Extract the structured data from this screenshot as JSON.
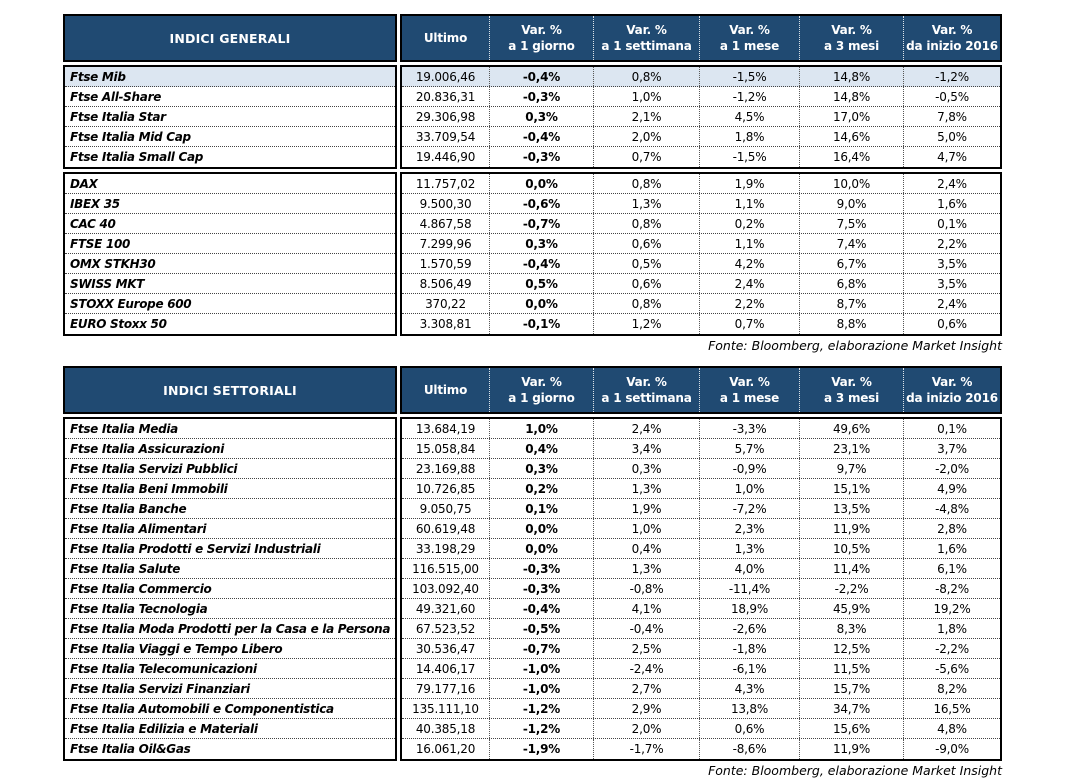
{
  "source_note": "Fonte: Bloomberg, elaborazione Market Insight",
  "colors": {
    "header_bg": "#204A72",
    "highlight_row": "#DCE6F1",
    "border": "#000000"
  },
  "columns": [
    {
      "l1": "Ultimo",
      "l2": ""
    },
    {
      "l1": "Var. %",
      "l2": "a 1 giorno"
    },
    {
      "l1": "Var. %",
      "l2": "a 1 settimana"
    },
    {
      "l1": "Var. %",
      "l2": "a 1 mese"
    },
    {
      "l1": "Var. %",
      "l2": "a 3 mesi"
    },
    {
      "l1": "Var. %",
      "l2": "da inizio 2016"
    }
  ],
  "tables": [
    {
      "title": "INDICI GENERALI",
      "groups": [
        {
          "rows": [
            {
              "name": "Ftse Mib",
              "highlight": true,
              "values": [
                "19.006,46",
                "-0,4%",
                "0,8%",
                "-1,5%",
                "14,8%",
                "-1,2%"
              ]
            },
            {
              "name": "Ftse All-Share",
              "values": [
                "20.836,31",
                "-0,3%",
                "1,0%",
                "-1,2%",
                "14,8%",
                "-0,5%"
              ]
            },
            {
              "name": "Ftse Italia Star",
              "values": [
                "29.306,98",
                "0,3%",
                "2,1%",
                "4,5%",
                "17,0%",
                "7,8%"
              ]
            },
            {
              "name": "Ftse Italia Mid Cap",
              "values": [
                "33.709,54",
                "-0,4%",
                "2,0%",
                "1,8%",
                "14,6%",
                "5,0%"
              ]
            },
            {
              "name": "Ftse Italia Small Cap",
              "values": [
                "19.446,90",
                "-0,3%",
                "0,7%",
                "-1,5%",
                "16,4%",
                "4,7%"
              ]
            }
          ]
        },
        {
          "rows": [
            {
              "name": "DAX",
              "values": [
                "11.757,02",
                "0,0%",
                "0,8%",
                "1,9%",
                "10,0%",
                "2,4%"
              ]
            },
            {
              "name": "IBEX 35",
              "values": [
                "9.500,30",
                "-0,6%",
                "1,3%",
                "1,1%",
                "9,0%",
                "1,6%"
              ]
            },
            {
              "name": "CAC 40",
              "values": [
                "4.867,58",
                "-0,7%",
                "0,8%",
                "0,2%",
                "7,5%",
                "0,1%"
              ]
            },
            {
              "name": "FTSE 100",
              "values": [
                "7.299,96",
                "0,3%",
                "0,6%",
                "1,1%",
                "7,4%",
                "2,2%"
              ]
            },
            {
              "name": "OMX STKH30",
              "values": [
                "1.570,59",
                "-0,4%",
                "0,5%",
                "4,2%",
                "6,7%",
                "3,5%"
              ]
            },
            {
              "name": "SWISS MKT",
              "values": [
                "8.506,49",
                "0,5%",
                "0,6%",
                "2,4%",
                "6,8%",
                "3,5%"
              ]
            },
            {
              "name": "STOXX Europe 600",
              "values": [
                "370,22",
                "0,0%",
                "0,8%",
                "2,2%",
                "8,7%",
                "2,4%"
              ]
            },
            {
              "name": "EURO Stoxx 50",
              "values": [
                "3.308,81",
                "-0,1%",
                "1,2%",
                "0,7%",
                "8,8%",
                "0,6%"
              ]
            }
          ]
        }
      ]
    },
    {
      "title": "INDICI SETTORIALI",
      "groups": [
        {
          "rows": [
            {
              "name": "Ftse Italia Media",
              "values": [
                "13.684,19",
                "1,0%",
                "2,4%",
                "-3,3%",
                "49,6%",
                "0,1%"
              ]
            },
            {
              "name": "Ftse Italia Assicurazioni",
              "values": [
                "15.058,84",
                "0,4%",
                "3,4%",
                "5,7%",
                "23,1%",
                "3,7%"
              ]
            },
            {
              "name": "Ftse Italia Servizi Pubblici",
              "values": [
                "23.169,88",
                "0,3%",
                "0,3%",
                "-0,9%",
                "9,7%",
                "-2,0%"
              ]
            },
            {
              "name": "Ftse Italia Beni Immobili",
              "values": [
                "10.726,85",
                "0,2%",
                "1,3%",
                "1,0%",
                "15,1%",
                "4,9%"
              ]
            },
            {
              "name": "Ftse Italia Banche",
              "values": [
                "9.050,75",
                "0,1%",
                "1,9%",
                "-7,2%",
                "13,5%",
                "-4,8%"
              ]
            },
            {
              "name": "Ftse Italia Alimentari",
              "values": [
                "60.619,48",
                "0,0%",
                "1,0%",
                "2,3%",
                "11,9%",
                "2,8%"
              ]
            },
            {
              "name": "Ftse Italia Prodotti e Servizi Industriali",
              "values": [
                "33.198,29",
                "0,0%",
                "0,4%",
                "1,3%",
                "10,5%",
                "1,6%"
              ]
            },
            {
              "name": "Ftse Italia Salute",
              "values": [
                "116.515,00",
                "-0,3%",
                "1,3%",
                "4,0%",
                "11,4%",
                "6,1%"
              ]
            },
            {
              "name": "Ftse Italia Commercio",
              "values": [
                "103.092,40",
                "-0,3%",
                "-0,8%",
                "-11,4%",
                "-2,2%",
                "-8,2%"
              ]
            },
            {
              "name": "Ftse Italia Tecnologia",
              "values": [
                "49.321,60",
                "-0,4%",
                "4,1%",
                "18,9%",
                "45,9%",
                "19,2%"
              ]
            },
            {
              "name": "Ftse Italia Moda Prodotti per la Casa e la Persona",
              "values": [
                "67.523,52",
                "-0,5%",
                "-0,4%",
                "-2,6%",
                "8,3%",
                "1,8%"
              ]
            },
            {
              "name": "Ftse Italia Viaggi e Tempo Libero",
              "values": [
                "30.536,47",
                "-0,7%",
                "2,5%",
                "-1,8%",
                "12,5%",
                "-2,2%"
              ]
            },
            {
              "name": "Ftse Italia Telecomunicazioni",
              "values": [
                "14.406,17",
                "-1,0%",
                "-2,4%",
                "-6,1%",
                "11,5%",
                "-5,6%"
              ]
            },
            {
              "name": "Ftse Italia Servizi Finanziari",
              "values": [
                "79.177,16",
                "-1,0%",
                "2,7%",
                "4,3%",
                "15,7%",
                "8,2%"
              ]
            },
            {
              "name": "Ftse Italia Automobili e Componentistica",
              "values": [
                "135.111,10",
                "-1,2%",
                "2,9%",
                "13,8%",
                "34,7%",
                "16,5%"
              ]
            },
            {
              "name": "Ftse Italia Edilizia e Materiali",
              "values": [
                "40.385,18",
                "-1,2%",
                "2,0%",
                "0,6%",
                "15,6%",
                "4,8%"
              ]
            },
            {
              "name": "Ftse Italia Oil&Gas",
              "values": [
                "16.061,20",
                "-1,9%",
                "-1,7%",
                "-8,6%",
                "11,9%",
                "-9,0%"
              ]
            }
          ]
        }
      ]
    }
  ]
}
